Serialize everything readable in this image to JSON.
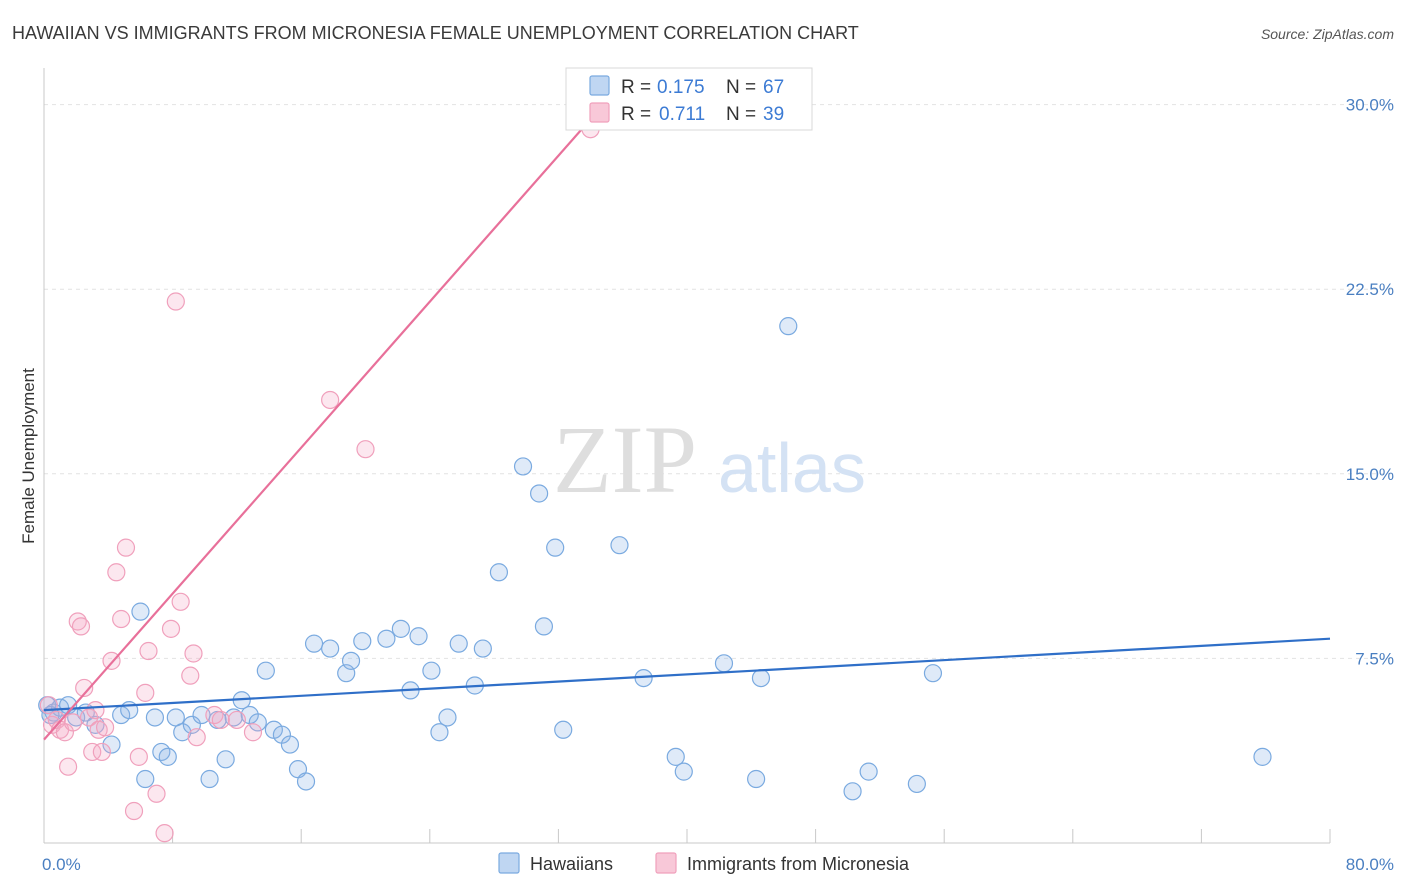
{
  "chart_data": {
    "type": "scatter",
    "title": "HAWAIIAN VS IMMIGRANTS FROM MICRONESIA FEMALE UNEMPLOYMENT CORRELATION CHART",
    "source": "Source: ZipAtlas.com",
    "ylabel": "Female Unemployment",
    "xlim": [
      0,
      80
    ],
    "ylim": [
      0,
      31
    ],
    "x_tick_labels": [
      "0.0%",
      "80.0%"
    ],
    "y_ticks": [
      7.5,
      15.0,
      22.5,
      30.0
    ],
    "y_tick_labels": [
      "7.5%",
      "15.0%",
      "22.5%",
      "30.0%"
    ],
    "watermark": {
      "zip": "ZIP",
      "atlas": "atlas"
    },
    "legend": [
      {
        "r_label": "R =",
        "r_value": "0.175",
        "n_label": "N =",
        "n_value": "67"
      },
      {
        "r_label": "R =",
        "r_value": "0.711",
        "n_label": "N =",
        "n_value": "39"
      }
    ],
    "series": [
      {
        "name": "Hawaiians",
        "color": "#7aaae0",
        "line_color": "#2f6fc8",
        "trend": {
          "x0": 0,
          "y0": 5.4,
          "x1": 80,
          "y1": 8.3
        },
        "points": [
          [
            0.2,
            5.6
          ],
          [
            0.6,
            5.3
          ],
          [
            1.0,
            5.5
          ],
          [
            1.5,
            5.6
          ],
          [
            2.0,
            5.1
          ],
          [
            2.6,
            5.3
          ],
          [
            3.2,
            4.8
          ],
          [
            4.2,
            4.0
          ],
          [
            4.8,
            5.2
          ],
          [
            5.3,
            5.4
          ],
          [
            6.0,
            9.4
          ],
          [
            6.3,
            2.6
          ],
          [
            6.9,
            5.1
          ],
          [
            7.3,
            3.7
          ],
          [
            7.7,
            3.5
          ],
          [
            8.2,
            5.1
          ],
          [
            8.6,
            4.5
          ],
          [
            9.2,
            4.8
          ],
          [
            9.8,
            5.2
          ],
          [
            10.3,
            2.6
          ],
          [
            10.8,
            5.0
          ],
          [
            11.3,
            3.4
          ],
          [
            11.8,
            5.1
          ],
          [
            12.3,
            5.8
          ],
          [
            12.8,
            5.2
          ],
          [
            13.3,
            4.9
          ],
          [
            13.8,
            7.0
          ],
          [
            14.3,
            4.6
          ],
          [
            14.8,
            4.4
          ],
          [
            15.3,
            4.0
          ],
          [
            15.8,
            3.0
          ],
          [
            16.3,
            2.5
          ],
          [
            16.8,
            8.1
          ],
          [
            17.8,
            7.9
          ],
          [
            18.8,
            6.9
          ],
          [
            19.1,
            7.4
          ],
          [
            19.8,
            8.2
          ],
          [
            21.3,
            8.3
          ],
          [
            22.2,
            8.7
          ],
          [
            22.8,
            6.2
          ],
          [
            23.3,
            8.4
          ],
          [
            24.1,
            7.0
          ],
          [
            24.6,
            4.5
          ],
          [
            25.1,
            5.1
          ],
          [
            25.8,
            8.1
          ],
          [
            26.8,
            6.4
          ],
          [
            27.3,
            7.9
          ],
          [
            28.3,
            11.0
          ],
          [
            29.8,
            15.3
          ],
          [
            30.8,
            14.2
          ],
          [
            31.1,
            8.8
          ],
          [
            31.8,
            12.0
          ],
          [
            32.3,
            4.6
          ],
          [
            35.8,
            12.1
          ],
          [
            37.3,
            6.7
          ],
          [
            39.3,
            3.5
          ],
          [
            39.8,
            2.9
          ],
          [
            42.3,
            7.3
          ],
          [
            44.3,
            2.6
          ],
          [
            44.6,
            6.7
          ],
          [
            46.3,
            21.0
          ],
          [
            50.3,
            2.1
          ],
          [
            51.3,
            2.9
          ],
          [
            54.3,
            2.4
          ],
          [
            55.3,
            6.9
          ],
          [
            75.8,
            3.5
          ],
          [
            0.4,
            5.2
          ]
        ]
      },
      {
        "name": "Immigrants from Micronesia",
        "color": "#f0a0bc",
        "line_color": "#e8709a",
        "trend": {
          "x0": 0,
          "y0": 4.2,
          "x1": 34.8,
          "y1": 30.0
        },
        "points": [
          [
            0.3,
            5.6
          ],
          [
            0.5,
            4.8
          ],
          [
            0.8,
            5.0
          ],
          [
            1.0,
            4.6
          ],
          [
            1.3,
            4.5
          ],
          [
            1.5,
            3.1
          ],
          [
            1.8,
            4.9
          ],
          [
            2.1,
            9.0
          ],
          [
            2.3,
            8.8
          ],
          [
            2.5,
            6.3
          ],
          [
            2.8,
            5.1
          ],
          [
            3.0,
            3.7
          ],
          [
            3.2,
            5.4
          ],
          [
            3.4,
            4.6
          ],
          [
            3.6,
            3.7
          ],
          [
            3.8,
            4.7
          ],
          [
            4.2,
            7.4
          ],
          [
            4.5,
            11.0
          ],
          [
            4.8,
            9.1
          ],
          [
            5.1,
            12.0
          ],
          [
            5.6,
            1.3
          ],
          [
            5.9,
            3.5
          ],
          [
            6.3,
            6.1
          ],
          [
            6.5,
            7.8
          ],
          [
            7.0,
            2.0
          ],
          [
            7.5,
            0.4
          ],
          [
            7.9,
            8.7
          ],
          [
            8.2,
            22.0
          ],
          [
            8.5,
            9.8
          ],
          [
            9.1,
            6.8
          ],
          [
            9.3,
            7.7
          ],
          [
            9.5,
            4.3
          ],
          [
            10.6,
            5.2
          ],
          [
            11.0,
            5.0
          ],
          [
            12.0,
            5.0
          ],
          [
            13.0,
            4.5
          ],
          [
            17.8,
            18.0
          ],
          [
            20.0,
            16.0
          ],
          [
            34.0,
            29.0
          ]
        ]
      }
    ]
  }
}
